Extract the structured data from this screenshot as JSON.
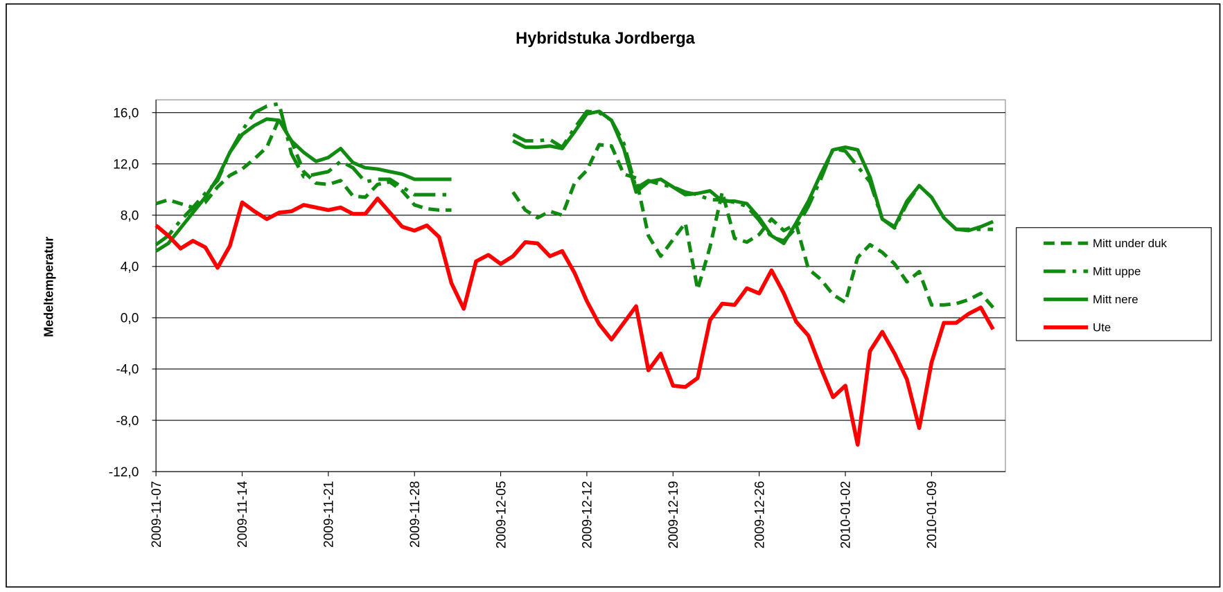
{
  "chart_data": {
    "type": "line",
    "title": "Hybridstuka Jordberga",
    "y_label": "Medeltemperatur",
    "legend": "right",
    "grid": true,
    "xlim": [
      "2009-11-07",
      "2010-01-15"
    ],
    "xticks": [
      "2009-11-07",
      "2009-11-14",
      "2009-11-21",
      "2009-11-28",
      "2009-12-05",
      "2009-12-12",
      "2009-12-19",
      "2009-12-26",
      "2010-01-02",
      "2010-01-09"
    ],
    "ylim": [
      -12,
      17
    ],
    "yticks": [
      {
        "value": -12,
        "label": "-12,0"
      },
      {
        "value": -8,
        "label": "-8,0"
      },
      {
        "value": -4,
        "label": "-4,0"
      },
      {
        "value": 0,
        "label": "0,0"
      },
      {
        "value": 4,
        "label": "4,0"
      },
      {
        "value": 8,
        "label": "8,0"
      },
      {
        "value": 12,
        "label": "12,0"
      },
      {
        "value": 16,
        "label": "16,0"
      }
    ],
    "x": [
      "2009-11-07",
      "2009-11-08",
      "2009-11-09",
      "2009-11-10",
      "2009-11-11",
      "2009-11-12",
      "2009-11-13",
      "2009-11-14",
      "2009-11-15",
      "2009-11-16",
      "2009-11-17",
      "2009-11-18",
      "2009-11-19",
      "2009-11-20",
      "2009-11-21",
      "2009-11-22",
      "2009-11-23",
      "2009-11-24",
      "2009-11-25",
      "2009-11-26",
      "2009-11-27",
      "2009-11-28",
      "2009-11-29",
      "2009-11-30",
      "2009-12-01",
      "2009-12-02",
      "2009-12-03",
      "2009-12-04",
      "2009-12-05",
      "2009-12-06",
      "2009-12-07",
      "2009-12-08",
      "2009-12-09",
      "2009-12-10",
      "2009-12-11",
      "2009-12-12",
      "2009-12-13",
      "2009-12-14",
      "2009-12-15",
      "2009-12-16",
      "2009-12-17",
      "2009-12-18",
      "2009-12-19",
      "2009-12-20",
      "2009-12-21",
      "2009-12-22",
      "2009-12-23",
      "2009-12-24",
      "2009-12-25",
      "2009-12-26",
      "2009-12-27",
      "2009-12-28",
      "2009-12-29",
      "2009-12-30",
      "2009-12-31",
      "2010-01-01",
      "2010-01-02",
      "2010-01-03",
      "2010-01-04",
      "2010-01-05",
      "2010-01-06",
      "2010-01-07",
      "2010-01-08",
      "2010-01-09",
      "2010-01-10",
      "2010-01-11",
      "2010-01-12",
      "2010-01-13",
      "2010-01-14"
    ],
    "series": [
      {
        "name": "Mitt under duk",
        "color": "#118a11",
        "dash": "dash",
        "values": [
          8.9,
          9.2,
          8.9,
          8.6,
          9.0,
          10.2,
          11.1,
          11.6,
          12.4,
          13.3,
          15.5,
          13.8,
          11.4,
          10.5,
          10.4,
          10.7,
          9.5,
          9.4,
          10.4,
          10.6,
          9.9,
          8.8,
          8.5,
          8.4,
          8.4,
          null,
          null,
          null,
          null,
          9.8,
          8.4,
          7.8,
          8.3,
          8.0,
          10.5,
          11.5,
          13.5,
          13.4,
          11.2,
          10.9,
          6.4,
          4.8,
          6.1,
          7.4,
          2.2,
          5.5,
          9.8,
          6.2,
          5.9,
          6.5,
          7.7,
          6.8,
          7.3,
          3.8,
          3.0,
          1.8,
          1.2,
          4.7,
          5.7,
          5.1,
          4.2,
          2.8,
          3.6,
          1.0,
          1.0,
          1.1,
          1.4,
          1.9,
          0.8
        ]
      },
      {
        "name": "Mitt uppe",
        "color": "#118a11",
        "dash": "longdashdot",
        "values": [
          5.7,
          6.4,
          7.6,
          8.6,
          9.7,
          10.7,
          12.9,
          14.6,
          16.0,
          16.5,
          16.7,
          12.8,
          11.0,
          11.2,
          11.4,
          12.2,
          11.7,
          10.6,
          10.8,
          10.8,
          10.2,
          9.6,
          9.6,
          9.6,
          9.6,
          null,
          null,
          null,
          null,
          14.3,
          13.8,
          13.8,
          13.9,
          13.3,
          14.8,
          16.1,
          16.0,
          15.4,
          13.6,
          10.1,
          10.7,
          10.4,
          10.2,
          9.8,
          9.6,
          9.2,
          9.2,
          9.0,
          8.7,
          7.6,
          6.3,
          6.0,
          7.0,
          8.7,
          10.8,
          13.2,
          13.0,
          11.8,
          10.6,
          7.7,
          7.0,
          8.9,
          10.3,
          9.4,
          7.8,
          6.9,
          6.9,
          6.9,
          6.9
        ]
      },
      {
        "name": "Mitt nere",
        "color": "#118a11",
        "dash": "solid",
        "values": [
          5.2,
          5.8,
          7.0,
          8.2,
          9.4,
          10.9,
          12.9,
          14.3,
          15.0,
          15.5,
          15.4,
          13.8,
          12.9,
          12.2,
          12.5,
          13.2,
          12.1,
          11.7,
          11.6,
          11.4,
          11.2,
          10.8,
          10.8,
          10.8,
          10.8,
          null,
          null,
          null,
          null,
          13.8,
          13.3,
          13.3,
          13.4,
          13.2,
          14.5,
          15.9,
          16.1,
          15.4,
          13.2,
          9.8,
          10.6,
          10.8,
          10.2,
          9.6,
          9.7,
          9.9,
          9.1,
          9.1,
          8.9,
          7.8,
          6.4,
          5.8,
          7.4,
          9.1,
          11.2,
          13.1,
          13.3,
          13.1,
          11.0,
          7.7,
          7.1,
          9.1,
          10.3,
          9.4,
          7.8,
          6.9,
          6.8,
          7.1,
          7.5
        ]
      },
      {
        "name": "Ute",
        "color": "#ff0000",
        "dash": "solid",
        "values": [
          7.2,
          6.4,
          5.4,
          6.0,
          5.5,
          3.9,
          5.6,
          9.0,
          8.3,
          7.7,
          8.2,
          8.3,
          8.8,
          8.6,
          8.4,
          8.6,
          8.1,
          8.1,
          9.3,
          8.2,
          7.1,
          6.8,
          7.2,
          6.3,
          2.7,
          0.7,
          4.4,
          4.9,
          4.2,
          4.8,
          5.9,
          5.8,
          4.8,
          5.2,
          3.5,
          1.3,
          -0.5,
          -1.7,
          -0.4,
          0.9,
          -4.1,
          -2.8,
          -5.3,
          -5.4,
          -4.7,
          -0.2,
          1.1,
          1.0,
          2.3,
          1.9,
          3.7,
          1.9,
          -0.3,
          -1.4,
          -3.9,
          -6.2,
          -5.3,
          -9.9,
          -2.6,
          -1.1,
          -2.8,
          -4.8,
          -8.6,
          -3.5,
          -0.4,
          -0.4,
          0.3,
          0.8,
          -0.9
        ]
      }
    ]
  }
}
